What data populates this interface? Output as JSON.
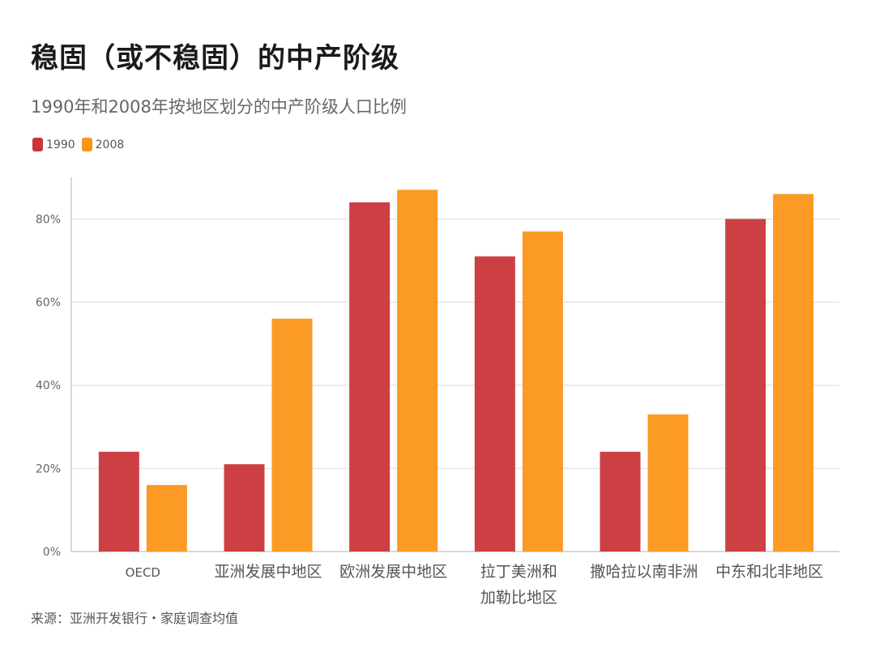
{
  "title": "稳固（或不稳固）的中产阶级",
  "subtitle": "1990年和2008年按地区划分的中产阶级人口比例",
  "source": "来源：亚洲开发银行・家庭调查均值",
  "colors": {
    "1990": "#c9363a",
    "2008": "#fb9518",
    "grid": "#e6e6e6",
    "axis": "#cccccc"
  },
  "chart_data": {
    "type": "bar",
    "categories": [
      "OECD",
      "亚洲发展中地区",
      "欧洲发展中地区",
      "拉丁美洲和加勒比地区",
      "撒哈拉以南非洲",
      "中东和北非地区"
    ],
    "category_lines": [
      [
        "OECD"
      ],
      [
        "亚洲发展中地区"
      ],
      [
        "欧洲发展中地区"
      ],
      [
        "拉丁美洲和",
        "加勒比地区"
      ],
      [
        "撒哈拉以南非洲"
      ],
      [
        "中东和北非地区"
      ]
    ],
    "series": [
      {
        "name": "1990",
        "values": [
          24,
          21,
          84,
          71,
          24,
          80
        ]
      },
      {
        "name": "2008",
        "values": [
          16,
          56,
          87,
          77,
          33,
          86
        ]
      }
    ],
    "ylim": [
      0,
      90
    ],
    "yticks": [
      0,
      20,
      40,
      60,
      80
    ],
    "ytick_labels": [
      "0%",
      "20%",
      "40%",
      "60%",
      "80%"
    ],
    "grid": true,
    "legend": "top-left"
  }
}
